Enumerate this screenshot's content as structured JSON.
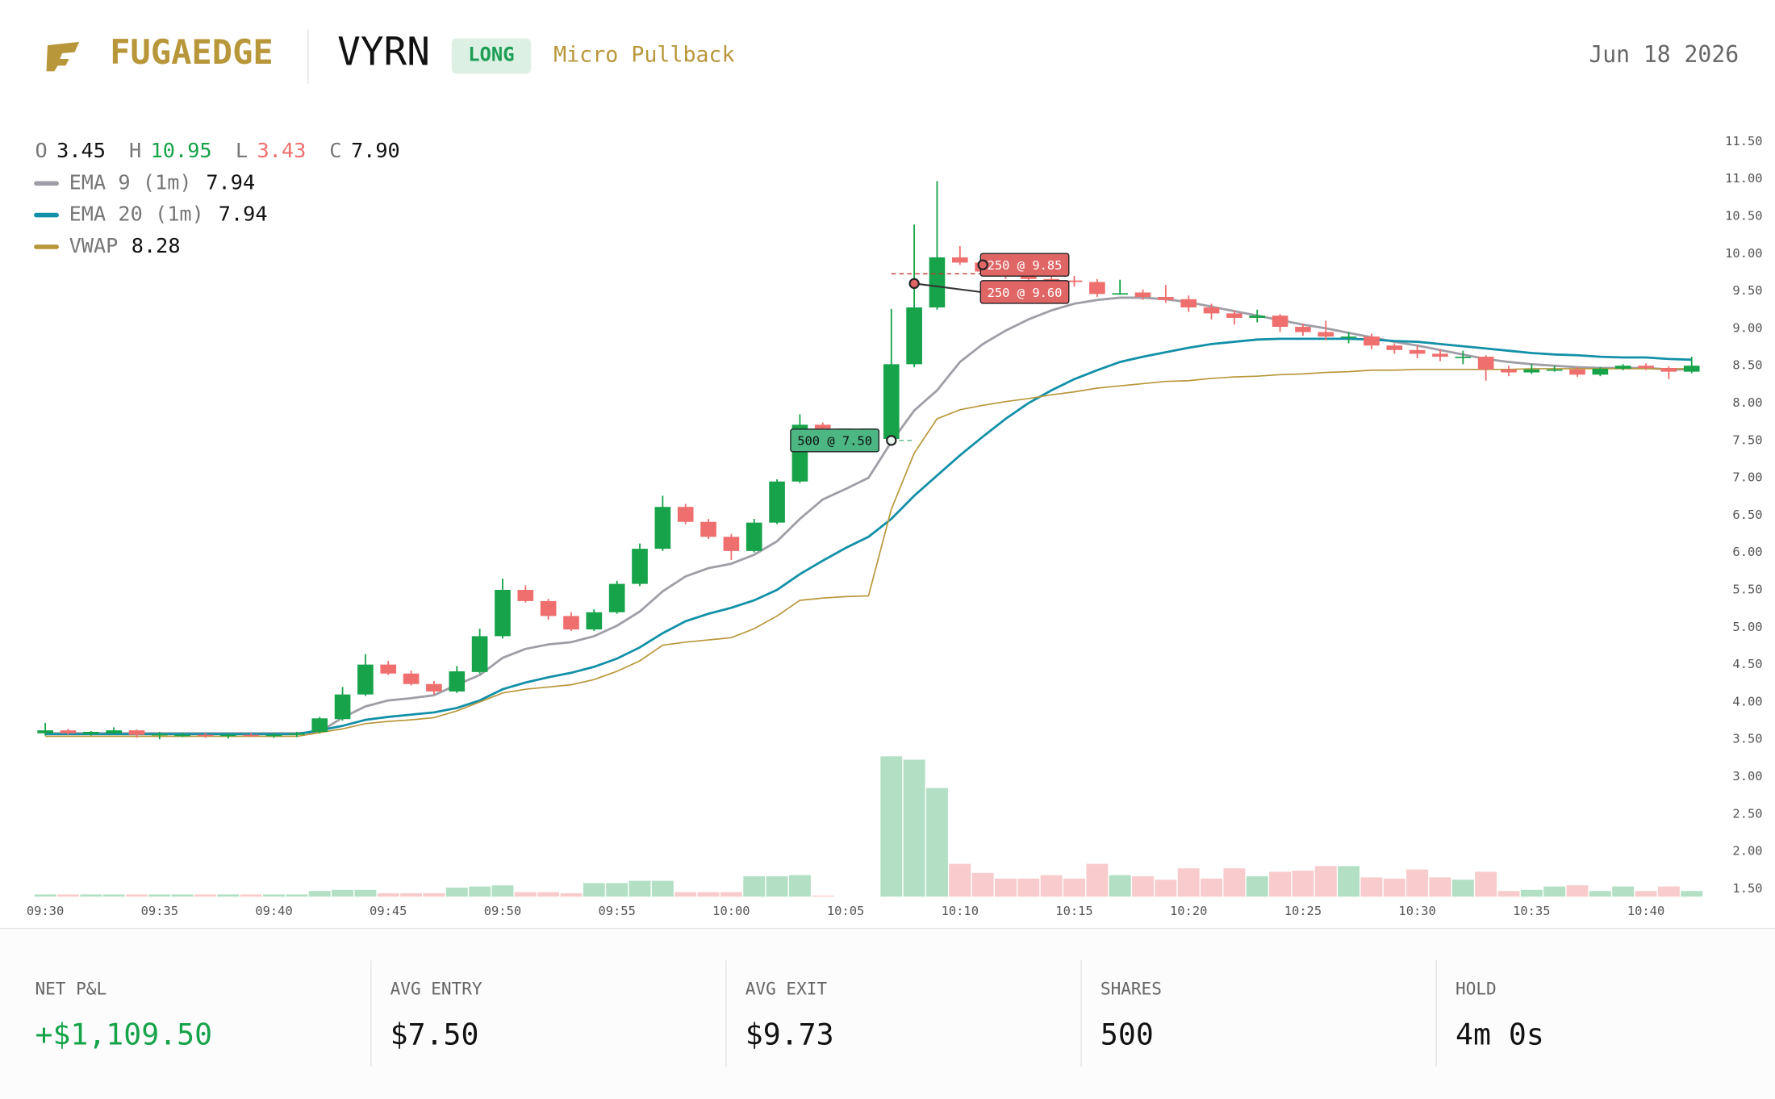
{
  "header": {
    "brand": "FUGAEDGE",
    "ticker": "VYRN",
    "side": "LONG",
    "setup": "Micro Pullback",
    "date": "Jun 18 2026"
  },
  "chart_data": {
    "type": "candlestick",
    "ohlc_legend": [
      {
        "key": "O",
        "value": "3.45",
        "color": "#111111"
      },
      {
        "key": "H",
        "value": "10.95",
        "color": "#16a34a"
      },
      {
        "key": "L",
        "value": "3.43",
        "color": "#ef6f6f"
      },
      {
        "key": "C",
        "value": "7.90",
        "color": "#111111"
      }
    ],
    "categories": [
      "09:30",
      "09:31",
      "09:32",
      "09:33",
      "09:34",
      "09:35",
      "09:36",
      "09:37",
      "09:38",
      "09:39",
      "09:40",
      "09:41",
      "09:42",
      "09:43",
      "09:44",
      "09:45",
      "09:46",
      "09:47",
      "09:48",
      "09:49",
      "09:50",
      "09:51",
      "09:52",
      "09:53",
      "09:54",
      "09:55",
      "09:56",
      "09:57",
      "09:58",
      "09:59",
      "10:00",
      "10:01",
      "10:02",
      "10:03",
      "10:04",
      "10:05",
      "10:06",
      "10:07",
      "10:08",
      "10:09",
      "10:10",
      "10:11",
      "10:12",
      "10:13",
      "10:14",
      "10:15",
      "10:16",
      "10:17",
      "10:18",
      "10:19",
      "10:20",
      "10:21",
      "10:22",
      "10:23",
      "10:24",
      "10:25",
      "10:26",
      "10:27",
      "10:28",
      "10:29",
      "10:30",
      "10:31",
      "10:32",
      "10:33",
      "10:34",
      "10:35",
      "10:36",
      "10:37",
      "10:38",
      "10:39",
      "10:40",
      "10:41",
      "10:42"
    ],
    "open": [
      3.58,
      3.62,
      3.57,
      3.58,
      3.62,
      3.57,
      3.56,
      3.56,
      3.55,
      3.56,
      3.55,
      3.56,
      3.6,
      3.77,
      4.1,
      4.5,
      4.38,
      4.24,
      4.14,
      4.4,
      4.88,
      5.5,
      5.35,
      5.15,
      4.97,
      5.2,
      5.58,
      6.05,
      6.61,
      6.41,
      6.21,
      6.02,
      6.4,
      6.95,
      7.71,
      7.66,
      7.66,
      7.52,
      8.52,
      9.28,
      9.95,
      9.88,
      9.76,
      9.7,
      9.66,
      9.64,
      9.62,
      9.47,
      9.48,
      9.42,
      9.39,
      9.28,
      9.2,
      9.14,
      9.17,
      9.02,
      8.95,
      8.89,
      8.89,
      8.77,
      8.71,
      8.66,
      8.62,
      8.62,
      8.45,
      8.41,
      8.45,
      8.45,
      8.38,
      8.46,
      8.5,
      8.47,
      8.42
    ],
    "high": [
      3.72,
      3.64,
      3.61,
      3.66,
      3.63,
      3.6,
      3.59,
      3.58,
      3.58,
      3.58,
      3.59,
      3.6,
      3.8,
      4.2,
      4.64,
      4.55,
      4.42,
      4.28,
      4.48,
      4.98,
      5.65,
      5.56,
      5.38,
      5.2,
      5.24,
      5.62,
      6.12,
      6.76,
      6.65,
      6.45,
      6.25,
      6.45,
      6.98,
      7.85,
      7.74,
      7.66,
      7.66,
      9.26,
      10.39,
      10.97,
      10.1,
      9.95,
      9.82,
      9.76,
      9.74,
      9.7,
      9.66,
      9.65,
      9.52,
      9.58,
      9.44,
      9.33,
      9.24,
      9.25,
      9.19,
      9.06,
      9.1,
      8.95,
      8.93,
      8.8,
      8.77,
      8.72,
      8.7,
      8.64,
      8.5,
      8.52,
      8.5,
      8.48,
      8.48,
      8.52,
      8.53,
      8.49,
      8.62
    ],
    "low": [
      3.55,
      3.56,
      3.55,
      3.57,
      3.52,
      3.5,
      3.53,
      3.52,
      3.51,
      3.53,
      3.52,
      3.53,
      3.58,
      3.75,
      4.08,
      4.36,
      4.22,
      4.1,
      4.12,
      4.38,
      4.85,
      5.33,
      5.1,
      4.95,
      4.95,
      5.18,
      5.55,
      6.02,
      6.38,
      6.18,
      5.9,
      6.0,
      6.38,
      6.93,
      7.62,
      7.66,
      7.66,
      7.5,
      8.48,
      9.25,
      9.85,
      9.72,
      9.66,
      9.62,
      9.58,
      9.56,
      9.42,
      9.45,
      9.38,
      9.34,
      9.22,
      9.12,
      9.05,
      9.08,
      8.95,
      8.9,
      8.84,
      8.8,
      8.72,
      8.66,
      8.6,
      8.56,
      8.52,
      8.3,
      8.36,
      8.39,
      8.42,
      8.35,
      8.36,
      8.44,
      8.44,
      8.32,
      8.4
    ],
    "close": [
      3.62,
      3.58,
      3.6,
      3.62,
      3.56,
      3.57,
      3.56,
      3.55,
      3.56,
      3.55,
      3.56,
      3.58,
      3.78,
      4.1,
      4.5,
      4.38,
      4.24,
      4.14,
      4.41,
      4.88,
      5.5,
      5.35,
      5.15,
      4.97,
      5.2,
      5.58,
      6.05,
      6.61,
      6.41,
      6.21,
      6.02,
      6.4,
      6.95,
      7.71,
      7.66,
      7.66,
      7.66,
      8.52,
      9.28,
      9.95,
      9.88,
      9.76,
      9.7,
      9.66,
      9.64,
      9.62,
      9.46,
      9.47,
      9.42,
      9.38,
      9.28,
      9.2,
      9.14,
      9.17,
      9.02,
      8.95,
      8.89,
      8.89,
      8.77,
      8.71,
      8.66,
      8.62,
      8.62,
      8.45,
      8.41,
      8.45,
      8.45,
      8.38,
      8.46,
      8.5,
      8.47,
      8.42,
      8.5
    ],
    "volume": [
      2,
      2,
      2,
      2,
      2,
      2,
      2,
      2,
      2,
      2,
      2,
      2,
      5,
      6,
      6,
      3,
      3,
      3,
      8,
      9,
      10,
      4,
      4,
      3,
      12,
      12,
      14,
      14,
      4,
      4,
      4,
      18,
      18,
      19,
      1,
      0,
      0,
      124,
      121,
      96,
      29,
      21,
      16,
      16,
      19,
      16,
      29,
      19,
      18,
      15,
      25,
      16,
      25,
      18,
      22,
      23,
      27,
      27,
      17,
      16,
      24,
      17,
      15,
      22,
      5,
      6,
      9,
      10,
      5,
      9,
      5,
      9,
      5
    ],
    "up_color": "#16a34a",
    "down_color": "#ef6f6f",
    "up_volume_color": "#b3e0c4",
    "down_volume_color": "#f8cccc",
    "series": [
      {
        "name": "EMA 9 (1m)",
        "color": "#9e9ea6",
        "legend_value": "7.94",
        "values": [
          3.58,
          3.58,
          3.58,
          3.58,
          3.58,
          3.58,
          3.58,
          3.58,
          3.58,
          3.58,
          3.58,
          3.58,
          3.6,
          3.79,
          3.94,
          4.02,
          4.05,
          4.09,
          4.23,
          4.36,
          4.59,
          4.71,
          4.77,
          4.8,
          4.88,
          5.02,
          5.21,
          5.48,
          5.68,
          5.79,
          5.85,
          5.97,
          6.15,
          6.45,
          6.71,
          6.85,
          7.0,
          7.48,
          7.9,
          8.17,
          8.55,
          8.79,
          8.97,
          9.12,
          9.24,
          9.33,
          9.38,
          9.41,
          9.41,
          9.39,
          9.35,
          9.29,
          9.23,
          9.17,
          9.11,
          9.05,
          9.0,
          8.94,
          8.88,
          8.82,
          8.77,
          8.71,
          8.65,
          8.59,
          8.55,
          8.52,
          8.5,
          8.48,
          8.47,
          8.47,
          8.47,
          8.45,
          8.45
        ]
      },
      {
        "name": "EMA 20 (1m)",
        "color": "#1290a8",
        "legend_value": "7.94",
        "values": [
          3.57,
          3.57,
          3.57,
          3.57,
          3.57,
          3.57,
          3.57,
          3.57,
          3.57,
          3.57,
          3.57,
          3.57,
          3.62,
          3.68,
          3.76,
          3.8,
          3.83,
          3.86,
          3.92,
          4.02,
          4.17,
          4.26,
          4.33,
          4.39,
          4.47,
          4.58,
          4.73,
          4.92,
          5.08,
          5.18,
          5.26,
          5.36,
          5.5,
          5.71,
          5.89,
          6.06,
          6.21,
          6.45,
          6.76,
          7.03,
          7.3,
          7.55,
          7.79,
          8.0,
          8.17,
          8.32,
          8.44,
          8.55,
          8.62,
          8.68,
          8.74,
          8.79,
          8.82,
          8.85,
          8.86,
          8.86,
          8.86,
          8.86,
          8.85,
          8.83,
          8.82,
          8.79,
          8.76,
          8.73,
          8.7,
          8.67,
          8.65,
          8.64,
          8.62,
          8.61,
          8.61,
          8.59,
          8.58
        ]
      },
      {
        "name": "VWAP",
        "color": "#b8973a",
        "legend_value": "8.28",
        "values": [
          3.54,
          3.54,
          3.54,
          3.54,
          3.54,
          3.54,
          3.54,
          3.54,
          3.54,
          3.54,
          3.54,
          3.54,
          3.59,
          3.64,
          3.71,
          3.74,
          3.76,
          3.79,
          3.88,
          4.0,
          4.12,
          4.17,
          4.2,
          4.23,
          4.3,
          4.41,
          4.55,
          4.76,
          4.8,
          4.83,
          4.86,
          4.98,
          5.15,
          5.36,
          5.39,
          5.41,
          5.42,
          6.58,
          7.33,
          7.79,
          7.91,
          7.97,
          8.02,
          8.06,
          8.11,
          8.15,
          8.2,
          8.23,
          8.26,
          8.29,
          8.3,
          8.33,
          8.35,
          8.36,
          8.38,
          8.39,
          8.41,
          8.42,
          8.44,
          8.44,
          8.45,
          8.45,
          8.45,
          8.45,
          8.45,
          8.46,
          8.46,
          8.46,
          8.46,
          8.46,
          8.46,
          8.46,
          8.46
        ]
      }
    ],
    "trades": [
      {
        "label": "500 @ 7.50",
        "time": "10:07",
        "price": 7.5,
        "color": "#4cb782"
      },
      {
        "label": "250 @ 9.85",
        "time": "10:11",
        "price": 9.85,
        "color": "#e06666"
      },
      {
        "label": "250 @ 9.60",
        "time": "10:08",
        "price": 9.6,
        "color": "#e06666"
      }
    ],
    "avg_exit_price": 9.73,
    "ylim": [
      1.5,
      11.5
    ],
    "yticks": [
      {
        "value": 1.5,
        "label": "1.50"
      },
      {
        "value": 2,
        "label": "2.00"
      },
      {
        "value": 2.5,
        "label": "2.50"
      },
      {
        "value": 3,
        "label": "3.00"
      },
      {
        "value": 3.5,
        "label": "3.50"
      },
      {
        "value": 4,
        "label": "4.00"
      },
      {
        "value": 4.5,
        "label": "4.50"
      },
      {
        "value": 5,
        "label": "5.00"
      },
      {
        "value": 5.5,
        "label": "5.50"
      },
      {
        "value": 6,
        "label": "6.00"
      },
      {
        "value": 6.5,
        "label": "6.50"
      },
      {
        "value": 7,
        "label": "7.00"
      },
      {
        "value": 7.5,
        "label": "7.50"
      },
      {
        "value": 8,
        "label": "8.00"
      },
      {
        "value": 8.5,
        "label": "8.50"
      },
      {
        "value": 9,
        "label": "9.00"
      },
      {
        "value": 9.5,
        "label": "9.50"
      },
      {
        "value": 10,
        "label": "10.00"
      },
      {
        "value": 10.5,
        "label": "10.50"
      },
      {
        "value": 11,
        "label": "11.00"
      },
      {
        "value": 11.5,
        "label": "11.50"
      }
    ],
    "xticks": [
      "09:30",
      "09:35",
      "09:40",
      "09:45",
      "09:50",
      "09:55",
      "10:00",
      "10:05",
      "10:10",
      "10:15",
      "10:20",
      "10:25",
      "10:30",
      "10:35",
      "10:40"
    ]
  },
  "stats": [
    {
      "label": "NET P&L",
      "value": "+$1,109.50",
      "color": "#16a34a"
    },
    {
      "label": "AVG ENTRY",
      "value": "$7.50",
      "color": "#111111"
    },
    {
      "label": "AVG EXIT",
      "value": "$9.73",
      "color": "#111111"
    },
    {
      "label": "SHARES",
      "value": "500",
      "color": "#111111"
    },
    {
      "label": "HOLD",
      "value": "4m 0s",
      "color": "#111111"
    }
  ]
}
